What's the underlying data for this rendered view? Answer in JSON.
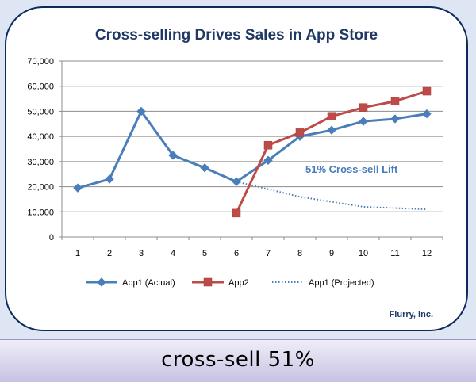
{
  "chart_data": {
    "type": "line",
    "title": "Cross-selling Drives Sales in App Store",
    "categories": [
      "1",
      "2",
      "3",
      "4",
      "5",
      "6",
      "7",
      "8",
      "9",
      "10",
      "11",
      "12"
    ],
    "ylim": [
      0,
      70000
    ],
    "yticks": [
      0,
      10000,
      20000,
      30000,
      40000,
      50000,
      60000,
      70000
    ],
    "ytick_labels": [
      "0",
      "10,000",
      "20,000",
      "30,000",
      "40,000",
      "50,000",
      "60,000",
      "70,000"
    ],
    "grid": "horizontal",
    "legend_position": "bottom",
    "series": [
      {
        "name": "App1 (Actual)",
        "color": "#4a7ebb",
        "marker": "diamond",
        "style": "solid",
        "x": [
          1,
          2,
          3,
          4,
          5,
          6,
          7,
          8,
          9,
          10,
          11,
          12
        ],
        "values": [
          19500,
          23000,
          50000,
          32500,
          27500,
          22000,
          30500,
          40000,
          42500,
          46000,
          47000,
          49000
        ]
      },
      {
        "name": "App2",
        "color": "#be4b48",
        "marker": "square",
        "style": "solid",
        "x": [
          6,
          7,
          8,
          9,
          10,
          11,
          12
        ],
        "values": [
          9500,
          36500,
          41500,
          48000,
          51500,
          54000,
          58000
        ]
      },
      {
        "name": "App1 (Projected)",
        "color": "#4a7ebb",
        "marker": "none",
        "style": "dotted",
        "x": [
          6,
          7,
          8,
          9,
          10,
          11,
          12
        ],
        "values": [
          22000,
          19000,
          16000,
          14000,
          12000,
          11500,
          11000
        ]
      }
    ],
    "annotation": {
      "text": "51% Cross-sell Lift",
      "color": "#4a7ebb"
    },
    "source": "Flurry, Inc."
  },
  "caption": "cross-sell 51%"
}
